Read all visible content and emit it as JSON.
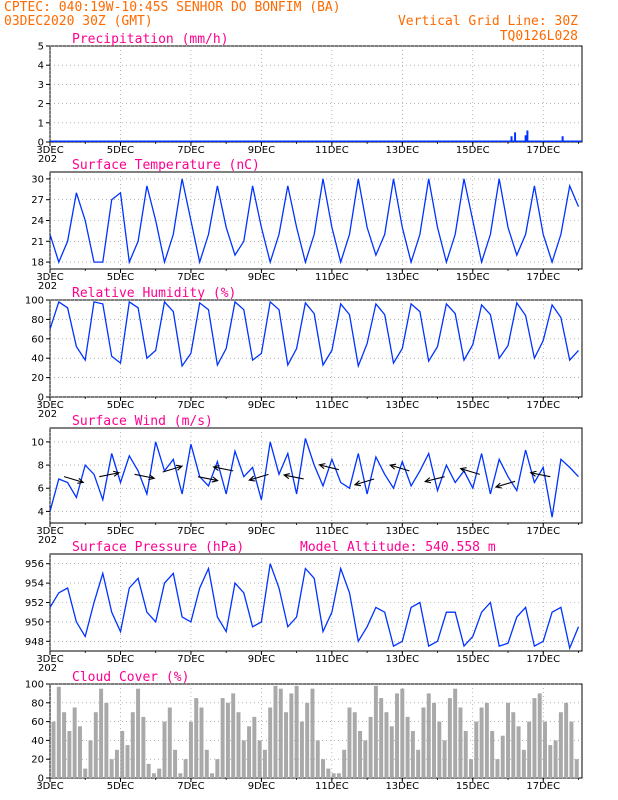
{
  "header": {
    "line1_left": "CPTEC:   040:19W-10:45S  SENHOR DO BONFIM (BA)",
    "line2_left": "03DEC2020 30Z (GMT)",
    "line2_right": "Vertical Grid Line: 30Z",
    "line3_right": "TQ0126L028"
  },
  "colors": {
    "header": "#ff6a00",
    "title": "#ff0090",
    "series": "#0033ff",
    "cloud": "#a9a9a9",
    "wind_arrow": "#000000"
  },
  "x_axis": {
    "tick_labels": [
      "3DEC",
      "5DEC",
      "7DEC",
      "9DEC",
      "11DEC",
      "13DEC",
      "15DEC",
      "17DEC"
    ],
    "tick_days": [
      3,
      5,
      7,
      9,
      11,
      13,
      15,
      17
    ],
    "range_days": [
      3,
      18.1
    ],
    "year_fragment": "202"
  },
  "chart_data": [
    {
      "type": "bar",
      "title": "Precipitation (mm/h)",
      "ylim": [
        0,
        5
      ],
      "yticks": [
        0,
        1,
        2,
        3,
        4,
        5
      ],
      "x_days": [
        16.1,
        16.2,
        16.5,
        16.55,
        17.55
      ],
      "values": [
        0.3,
        0.5,
        0.35,
        0.6,
        0.3
      ]
    },
    {
      "type": "line",
      "title": "Surface Temperature (nC)",
      "ylim": [
        17,
        31
      ],
      "yticks": [
        18,
        21,
        24,
        27,
        30
      ],
      "x_days": [
        3.0,
        3.25,
        3.5,
        3.75,
        4.0,
        4.25,
        4.5,
        4.75,
        5.0,
        5.25,
        5.5,
        5.75,
        6.0,
        6.25,
        6.5,
        6.75,
        7.0,
        7.25,
        7.5,
        7.75,
        8.0,
        8.25,
        8.5,
        8.75,
        9.0,
        9.25,
        9.5,
        9.75,
        10.0,
        10.25,
        10.5,
        10.75,
        11.0,
        11.25,
        11.5,
        11.75,
        12.0,
        12.25,
        12.5,
        12.75,
        13.0,
        13.25,
        13.5,
        13.75,
        14.0,
        14.25,
        14.5,
        14.75,
        15.0,
        15.25,
        15.5,
        15.75,
        16.0,
        16.25,
        16.5,
        16.75,
        17.0,
        17.25,
        17.5,
        17.75,
        18.0
      ],
      "values": [
        22,
        18,
        21,
        28,
        24,
        18,
        18,
        27,
        28,
        18,
        21,
        29,
        24,
        18,
        22,
        30,
        24,
        18,
        22,
        29,
        23,
        19,
        21,
        29,
        23,
        18,
        22,
        29,
        23,
        18,
        22,
        30,
        23,
        18,
        22,
        30,
        23,
        19,
        22,
        30,
        23,
        18,
        22,
        30,
        23,
        18,
        22,
        30,
        24,
        18,
        22,
        30,
        23,
        19,
        22,
        29,
        22,
        18,
        22,
        29,
        26
      ]
    },
    {
      "type": "line",
      "title": "Relative Humidity (%)",
      "ylim": [
        0,
        100
      ],
      "yticks": [
        0,
        20,
        40,
        60,
        80,
        100
      ],
      "x_days": [
        3.0,
        3.25,
        3.5,
        3.75,
        4.0,
        4.25,
        4.5,
        4.75,
        5.0,
        5.25,
        5.5,
        5.75,
        6.0,
        6.25,
        6.5,
        6.75,
        7.0,
        7.25,
        7.5,
        7.75,
        8.0,
        8.25,
        8.5,
        8.75,
        9.0,
        9.25,
        9.5,
        9.75,
        10.0,
        10.25,
        10.5,
        10.75,
        11.0,
        11.25,
        11.5,
        11.75,
        12.0,
        12.25,
        12.5,
        12.75,
        13.0,
        13.25,
        13.5,
        13.75,
        14.0,
        14.25,
        14.5,
        14.75,
        15.0,
        15.25,
        15.5,
        15.75,
        16.0,
        16.25,
        16.5,
        16.75,
        17.0,
        17.25,
        17.5,
        17.75,
        18.0
      ],
      "values": [
        70,
        98,
        92,
        52,
        38,
        98,
        96,
        42,
        35,
        98,
        92,
        40,
        48,
        98,
        88,
        32,
        45,
        97,
        90,
        33,
        50,
        98,
        90,
        38,
        45,
        98,
        90,
        33,
        50,
        97,
        86,
        33,
        48,
        96,
        85,
        32,
        55,
        96,
        85,
        35,
        50,
        96,
        88,
        37,
        52,
        96,
        86,
        38,
        54,
        95,
        85,
        40,
        53,
        97,
        84,
        40,
        58,
        95,
        82,
        38,
        48
      ]
    },
    {
      "type": "line",
      "title": "Surface Wind (m/s)",
      "ylim": [
        3,
        11.2
      ],
      "yticks": [
        4,
        6,
        8,
        10
      ],
      "x_days": [
        3.0,
        3.25,
        3.5,
        3.75,
        4.0,
        4.25,
        4.5,
        4.75,
        5.0,
        5.25,
        5.5,
        5.75,
        6.0,
        6.25,
        6.5,
        6.75,
        7.0,
        7.25,
        7.5,
        7.75,
        8.0,
        8.25,
        8.5,
        8.75,
        9.0,
        9.25,
        9.5,
        9.75,
        10.0,
        10.25,
        10.5,
        10.75,
        11.0,
        11.25,
        11.5,
        11.75,
        12.0,
        12.25,
        12.5,
        12.75,
        13.0,
        13.25,
        13.5,
        13.75,
        14.0,
        14.25,
        14.5,
        14.75,
        15.0,
        15.25,
        15.5,
        15.75,
        16.0,
        16.25,
        16.5,
        16.75,
        17.0,
        17.25,
        17.5,
        17.75,
        18.0
      ],
      "values": [
        4,
        6.8,
        6.5,
        5.2,
        8,
        7.2,
        5,
        9,
        6.5,
        8.8,
        7.5,
        5.5,
        10,
        7.5,
        8.5,
        5.5,
        9.8,
        7,
        6.2,
        8.3,
        5.5,
        9.2,
        7,
        7.8,
        5,
        10,
        7.2,
        9,
        5.5,
        10.3,
        8,
        6.2,
        8.5,
        6.5,
        6,
        9,
        5.5,
        8.7,
        7.2,
        6,
        8.3,
        6.2,
        7.5,
        9,
        5.8,
        8,
        6.5,
        7.5,
        6,
        9,
        5.5,
        8.5,
        7,
        5.8,
        9.3,
        6.5,
        7.8,
        3.5,
        8.5,
        7.8,
        7
      ],
      "wind_arrows": {
        "x_days": [
          3.4,
          4.4,
          5.4,
          6.2,
          7.2,
          8.2,
          9.2,
          10.2,
          11.2,
          12.2,
          13.2,
          14.2,
          15.2,
          16.2,
          17.2
        ],
        "speeds": [
          7,
          7,
          7.2,
          7.4,
          7,
          7.5,
          7.2,
          6.8,
          7.6,
          6.8,
          7.5,
          7,
          7.2,
          6.6,
          7
        ],
        "u": [
          1,
          1,
          1,
          1,
          1,
          -1,
          -1,
          -1,
          -1,
          -1,
          -1,
          -1,
          -1,
          -1,
          -1
        ],
        "v": [
          -0.3,
          0.2,
          -0.2,
          0.3,
          -0.2,
          0.2,
          -0.3,
          0.2,
          0.25,
          -0.3,
          0.3,
          -0.25,
          0.3,
          -0.3,
          0.2
        ]
      }
    },
    {
      "type": "line",
      "title": "Surface Pressure (hPa)",
      "annotation": "Model Altitude: 540.558 m",
      "ylim": [
        947,
        957
      ],
      "yticks": [
        948,
        950,
        952,
        954,
        956
      ],
      "x_days": [
        3.0,
        3.25,
        3.5,
        3.75,
        4.0,
        4.25,
        4.5,
        4.75,
        5.0,
        5.25,
        5.5,
        5.75,
        6.0,
        6.25,
        6.5,
        6.75,
        7.0,
        7.25,
        7.5,
        7.75,
        8.0,
        8.25,
        8.5,
        8.75,
        9.0,
        9.25,
        9.5,
        9.75,
        10.0,
        10.25,
        10.5,
        10.75,
        11.0,
        11.25,
        11.5,
        11.75,
        12.0,
        12.25,
        12.5,
        12.75,
        13.0,
        13.25,
        13.5,
        13.75,
        14.0,
        14.25,
        14.5,
        14.75,
        15.0,
        15.25,
        15.5,
        15.75,
        16.0,
        16.25,
        16.5,
        16.75,
        17.0,
        17.25,
        17.5,
        17.75,
        18.0
      ],
      "values": [
        951.5,
        953,
        953.5,
        950,
        948.5,
        952,
        955,
        951,
        949,
        953.5,
        954.5,
        951,
        950,
        954,
        955,
        950.5,
        950,
        953.5,
        955.5,
        950.5,
        949,
        954,
        953,
        949.5,
        950,
        956,
        953.5,
        949.5,
        950.5,
        955.5,
        954.5,
        949,
        951,
        955.5,
        953,
        948,
        949.5,
        951.5,
        951,
        947.5,
        948,
        951.5,
        952,
        947.5,
        948,
        951,
        951,
        947.5,
        948.5,
        951,
        952,
        947.5,
        947.8,
        950.5,
        951.5,
        947.5,
        948,
        951,
        951.5,
        947.3,
        949.5
      ]
    },
    {
      "type": "bar",
      "title": "Cloud Cover (%)",
      "ylim": [
        0,
        100
      ],
      "yticks": [
        0,
        20,
        40,
        60,
        80,
        100
      ],
      "x_days": [
        3.1,
        3.25,
        3.4,
        3.55,
        3.7,
        3.85,
        4.0,
        4.15,
        4.3,
        4.45,
        4.6,
        4.75,
        4.9,
        5.05,
        5.2,
        5.35,
        5.5,
        5.65,
        5.8,
        5.95,
        6.1,
        6.25,
        6.4,
        6.55,
        6.7,
        6.85,
        7.0,
        7.15,
        7.3,
        7.45,
        7.6,
        7.75,
        7.9,
        8.05,
        8.2,
        8.35,
        8.5,
        8.65,
        8.8,
        8.95,
        9.1,
        9.25,
        9.4,
        9.55,
        9.7,
        9.85,
        10.0,
        10.15,
        10.3,
        10.45,
        10.6,
        10.75,
        10.9,
        11.05,
        11.2,
        11.35,
        11.5,
        11.65,
        11.8,
        11.95,
        12.1,
        12.25,
        12.4,
        12.55,
        12.7,
        12.85,
        13.0,
        13.15,
        13.3,
        13.45,
        13.6,
        13.75,
        13.9,
        14.05,
        14.2,
        14.35,
        14.5,
        14.65,
        14.8,
        14.95,
        15.1,
        15.25,
        15.4,
        15.55,
        15.7,
        15.85,
        16.0,
        16.15,
        16.3,
        16.45,
        16.6,
        16.75,
        16.9,
        17.05,
        17.2,
        17.35,
        17.5,
        17.65,
        17.8,
        17.95
      ],
      "values": [
        60,
        97,
        70,
        50,
        75,
        55,
        10,
        40,
        70,
        95,
        80,
        20,
        30,
        50,
        35,
        70,
        95,
        65,
        15,
        5,
        10,
        60,
        75,
        30,
        5,
        20,
        60,
        85,
        75,
        30,
        5,
        20,
        85,
        80,
        90,
        70,
        40,
        55,
        65,
        40,
        30,
        75,
        98,
        95,
        70,
        90,
        98,
        60,
        80,
        95,
        40,
        20,
        10,
        5,
        5,
        30,
        75,
        70,
        50,
        40,
        65,
        98,
        85,
        70,
        55,
        90,
        95,
        65,
        50,
        30,
        75,
        90,
        80,
        60,
        40,
        85,
        95,
        75,
        50,
        20,
        60,
        75,
        80,
        50,
        20,
        45,
        80,
        70,
        55,
        30,
        60,
        85,
        90,
        60,
        35,
        40,
        70,
        80,
        60,
        20
      ]
    }
  ]
}
